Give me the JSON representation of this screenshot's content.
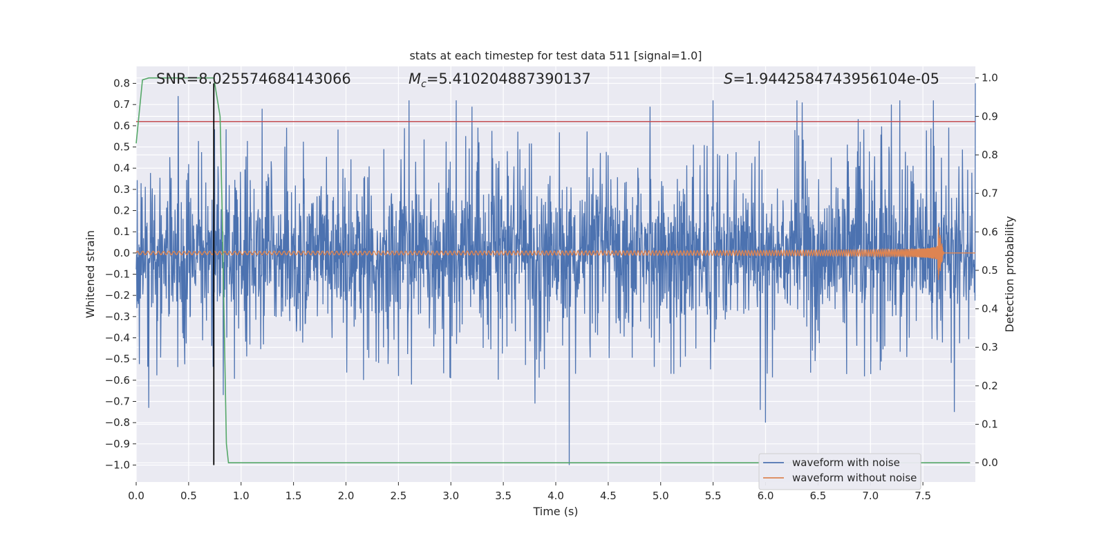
{
  "chart_data": {
    "type": "line",
    "title": "stats at each timestep for test data 511 [signal=1.0]",
    "xlabel": "Time (s)",
    "ylabel": "Whitened strain",
    "ylabel_right": "Detection probability",
    "xlim": [
      0.0,
      8.0
    ],
    "ylim": [
      -1.08,
      0.88
    ],
    "ylim_right": [
      -0.05,
      1.03
    ],
    "x_ticks": [
      "0.0",
      "0.5",
      "1.0",
      "1.5",
      "2.0",
      "2.5",
      "3.0",
      "3.5",
      "4.0",
      "4.5",
      "5.0",
      "5.5",
      "6.0",
      "6.5",
      "7.0",
      "7.5"
    ],
    "y_ticks": [
      "0.8",
      "0.7",
      "0.6",
      "0.5",
      "0.4",
      "0.3",
      "0.2",
      "0.1",
      "0.0",
      "−0.1",
      "−0.2",
      "−0.3",
      "−0.4",
      "−0.5",
      "−0.6",
      "−0.7",
      "−0.8",
      "−0.9",
      "−1.0"
    ],
    "y_right_ticks": [
      "1.0",
      "0.9",
      "0.8",
      "0.7",
      "0.6",
      "0.5",
      "0.4",
      "0.3",
      "0.2",
      "0.1",
      "0.0"
    ],
    "grid": true,
    "legend": {
      "location": "lower-right",
      "entries": [
        "waveform with noise",
        "waveform without noise"
      ]
    },
    "annotations": {
      "snr": "SNR=8.025574684143066",
      "mc_symbol": "M",
      "mc_sub": "c",
      "mc_value": "=5.410204887390137",
      "s_symbol": "S",
      "s_value": "=1.9442584743956104e-05"
    },
    "colors": {
      "noisy": "#4c72b0",
      "clean": "#dd8452",
      "probability": "#55a868",
      "threshold": "#c44e52",
      "marker": "#000000",
      "background": "#eaeaf2",
      "grid": "#ffffff"
    },
    "series": [
      {
        "name": "waveform with noise",
        "style": "noise",
        "amplitude": 0.3,
        "peaks": [
          {
            "x": 0.12,
            "y": -0.73
          },
          {
            "x": 0.4,
            "y": 0.74
          },
          {
            "x": 0.83,
            "y": -0.67
          },
          {
            "x": 1.2,
            "y": 0.68
          },
          {
            "x": 2.5,
            "y": -0.58
          },
          {
            "x": 2.6,
            "y": 0.72
          },
          {
            "x": 3.05,
            "y": 0.72
          },
          {
            "x": 3.2,
            "y": 0.69
          },
          {
            "x": 3.8,
            "y": -0.71
          },
          {
            "x": 4.13,
            "y": -1.0
          },
          {
            "x": 4.9,
            "y": 0.69
          },
          {
            "x": 5.5,
            "y": 0.72
          },
          {
            "x": 5.95,
            "y": -0.74
          },
          {
            "x": 6.0,
            "y": -0.8
          },
          {
            "x": 6.3,
            "y": 0.72
          },
          {
            "x": 6.35,
            "y": 0.71
          },
          {
            "x": 7.2,
            "y": 0.7
          },
          {
            "x": 7.28,
            "y": 0.72
          },
          {
            "x": 7.6,
            "y": 0.72
          },
          {
            "x": 7.8,
            "y": -0.75
          },
          {
            "x": 8.0,
            "y": 0.8
          }
        ]
      },
      {
        "name": "waveform without noise",
        "style": "chirp",
        "amplitude_start": 0.015,
        "amplitude_peak": 0.15,
        "merger_time": 7.64,
        "frequency_start": 20
      },
      {
        "name": "detection probability",
        "axis": "right",
        "x": [
          0.0,
          0.06,
          0.12,
          0.18,
          0.7,
          0.74,
          0.8,
          0.82,
          0.86,
          0.88,
          7.95
        ],
        "y": [
          0.83,
          0.995,
          1.0,
          1.0,
          1.0,
          1.0,
          0.9,
          0.65,
          0.05,
          0.0,
          0.0
        ]
      },
      {
        "name": "threshold",
        "axis": "left",
        "y": 0.62
      },
      {
        "name": "marker",
        "axis": "left",
        "x": 0.74,
        "y_range": [
          -1.0,
          0.8
        ]
      }
    ]
  }
}
